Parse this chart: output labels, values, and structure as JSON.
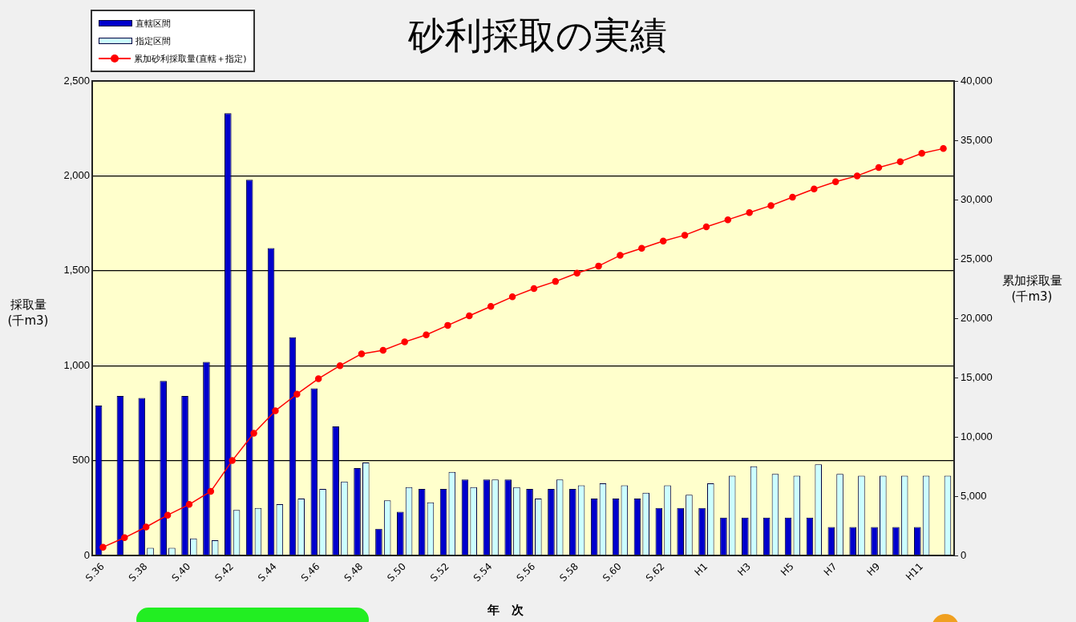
{
  "chart_data": {
    "type": "bar",
    "title": "砂利採取の実績",
    "xlabel": "年　次",
    "ylabel": "採取量\n(千m3)",
    "y2label": "累加採取量\n(千m3)",
    "categories": [
      "S.36",
      null,
      "S.38",
      null,
      "S.40",
      null,
      "S.42",
      null,
      "S.44",
      null,
      "S.46",
      null,
      "S.48",
      null,
      "S.50",
      null,
      "S.52",
      null,
      "S.54",
      null,
      "S.56",
      null,
      "S.58",
      null,
      "S.60",
      null,
      "S.62",
      null,
      "H1",
      null,
      "H3",
      null,
      "H5",
      null,
      "H7",
      null,
      "H9",
      null,
      "H11",
      null
    ],
    "series": [
      {
        "name": "直轄区間",
        "color": "#0000cc",
        "values": [
          790,
          840,
          830,
          920,
          840,
          1020,
          2330,
          1980,
          1620,
          1150,
          880,
          680,
          460,
          140,
          230,
          350,
          350,
          400,
          400,
          400,
          350,
          350,
          350,
          300,
          300,
          300,
          250,
          250,
          250,
          200,
          200,
          200,
          200,
          200,
          150,
          150,
          150,
          150,
          150,
          null
        ]
      },
      {
        "name": "指定区間",
        "color": "#ccffff",
        "values": [
          null,
          null,
          40,
          40,
          90,
          80,
          240,
          250,
          270,
          300,
          350,
          390,
          490,
          290,
          360,
          280,
          440,
          360,
          400,
          360,
          300,
          400,
          370,
          380,
          370,
          330,
          370,
          320,
          380,
          420,
          470,
          430,
          420,
          480,
          430,
          420,
          420,
          420,
          420,
          420
        ]
      },
      {
        "name": "累加砂利採取量(直轄＋指定)",
        "type": "line",
        "axis": "y2",
        "color": "#ff0000",
        "values": [
          700,
          1500,
          2400,
          3400,
          4300,
          5400,
          8000,
          10300,
          12200,
          13600,
          14900,
          16000,
          17000,
          17300,
          18000,
          18600,
          19400,
          20200,
          21000,
          21800,
          22500,
          23100,
          23800,
          24400,
          25300,
          25900,
          26500,
          27000,
          27700,
          28300,
          28900,
          29500,
          30200,
          30900,
          31500,
          32000,
          32700,
          33200,
          33900,
          34300
        ]
      }
    ],
    "ylim": [
      0,
      2500
    ],
    "yticks": [
      {
        "value": 0,
        "label": "0"
      },
      {
        "value": 500,
        "label": "500"
      },
      {
        "value": 1000,
        "label": "1,000"
      },
      {
        "value": 1500,
        "label": "1,500"
      },
      {
        "value": 2000,
        "label": "2,000"
      },
      {
        "value": 2500,
        "label": "2,500"
      }
    ],
    "y2lim": [
      0,
      40000
    ],
    "y2ticks": [
      {
        "value": 0,
        "label": "0"
      },
      {
        "value": 5000,
        "label": "5,000"
      },
      {
        "value": 10000,
        "label": "10,000"
      },
      {
        "value": 15000,
        "label": "15,000"
      },
      {
        "value": 20000,
        "label": "20,000"
      },
      {
        "value": 25000,
        "label": "25,000"
      },
      {
        "value": 30000,
        "label": "30,000"
      },
      {
        "value": 35000,
        "label": "35,000"
      },
      {
        "value": 40000,
        "label": "40,000"
      }
    ],
    "grid": "y",
    "legend": "top left",
    "marker": "circle",
    "line_style": "solid"
  }
}
